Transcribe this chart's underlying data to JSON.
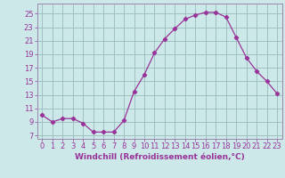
{
  "x": [
    0,
    1,
    2,
    3,
    4,
    5,
    6,
    7,
    8,
    9,
    10,
    11,
    12,
    13,
    14,
    15,
    16,
    17,
    18,
    19,
    20,
    21,
    22,
    23
  ],
  "y": [
    10.0,
    9.0,
    9.5,
    9.5,
    8.8,
    7.5,
    7.5,
    7.5,
    9.2,
    13.5,
    16.0,
    19.2,
    21.3,
    22.8,
    24.2,
    24.8,
    25.2,
    25.2,
    24.5,
    21.5,
    18.5,
    16.5,
    15.0,
    13.2
  ],
  "line_color": "#993399",
  "marker": "D",
  "marker_size": 2.2,
  "bg_color": "#cce8e8",
  "grid_color": "#99bbbb",
  "xlabel": "Windchill (Refroidissement éolien,°C)",
  "xlabel_fontsize": 6.5,
  "yticks": [
    7,
    9,
    11,
    13,
    15,
    17,
    19,
    21,
    23,
    25
  ],
  "xticks": [
    0,
    1,
    2,
    3,
    4,
    5,
    6,
    7,
    8,
    9,
    10,
    11,
    12,
    13,
    14,
    15,
    16,
    17,
    18,
    19,
    20,
    21,
    22,
    23
  ],
  "ylim": [
    6.5,
    26.5
  ],
  "xlim": [
    -0.5,
    23.5
  ],
  "tick_fontsize": 6.0,
  "spine_color": "#9988aa",
  "line_width": 0.9
}
